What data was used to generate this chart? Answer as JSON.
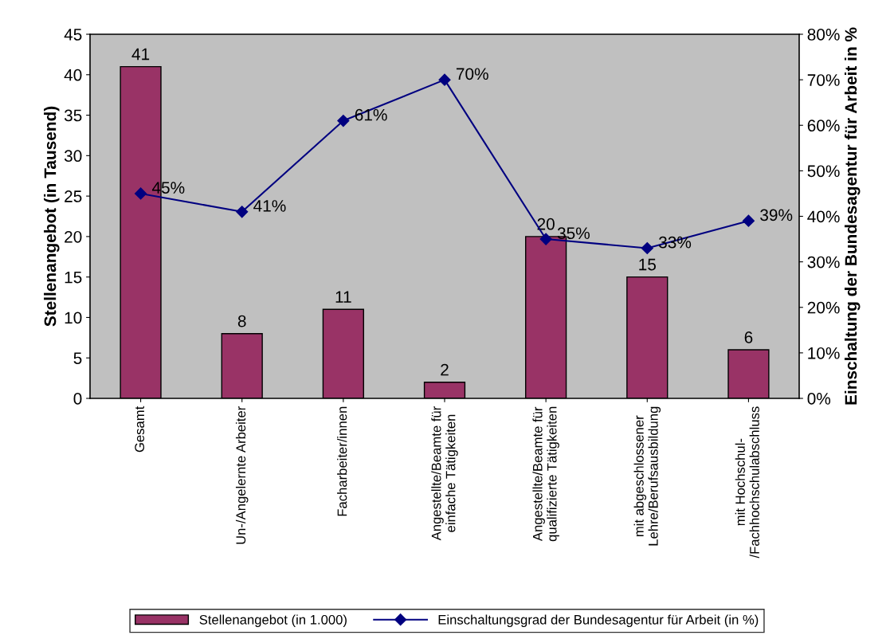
{
  "chart_data": {
    "type": "bar",
    "categories": [
      "Gesamt",
      "Un-/Angelernte Arbeiter",
      "Facharbeiter/innen",
      "Angestellte/Beamte für\neinfache Tätigkeiten",
      "Angestellte/Beamte für\nqualifizierte Tätigkeiten",
      "mit abgeschlossener\nLehre/Berufsausbildung",
      "mit Hochschul-\n/Fachhochschulabschluss"
    ],
    "series": [
      {
        "name": "Stellenangebot (in 1.000)",
        "color": "#993366",
        "values": [
          41,
          8,
          11,
          2,
          20,
          15,
          6
        ],
        "value_labels": [
          "41",
          "8",
          "11",
          "2",
          "20",
          "15",
          "6"
        ]
      },
      {
        "name": "Einschaltungsgrad der Bundesagentur für Arbeit (in %)",
        "type": "line",
        "axis": "y2",
        "color": "#000080",
        "values": [
          45,
          41,
          61,
          70,
          35,
          33,
          39
        ],
        "value_labels": [
          "45%",
          "41%",
          "61%",
          "70%",
          "35%",
          "33%",
          "39%"
        ]
      }
    ],
    "ylabel": "Stellenangebot (in Tausend)",
    "y2label": "Einschaltung der Bundesagentur für Arbeit in %",
    "ylim": [
      0,
      45
    ],
    "yticks": [
      0,
      5,
      10,
      15,
      20,
      25,
      30,
      35,
      40,
      45
    ],
    "y2lim": [
      0,
      80
    ],
    "y2ticks": [
      {
        "value": 0,
        "label": "0%"
      },
      {
        "value": 10,
        "label": "10%"
      },
      {
        "value": 20,
        "label": "20%"
      },
      {
        "value": 30,
        "label": "30%"
      },
      {
        "value": 40,
        "label": "40%"
      },
      {
        "value": 50,
        "label": "50%"
      },
      {
        "value": 60,
        "label": "60%"
      },
      {
        "value": 70,
        "label": "70%"
      },
      {
        "value": 80,
        "label": "80%"
      }
    ],
    "marker": "diamond",
    "line_style": "solid",
    "grid": false,
    "legend": "bottom"
  }
}
